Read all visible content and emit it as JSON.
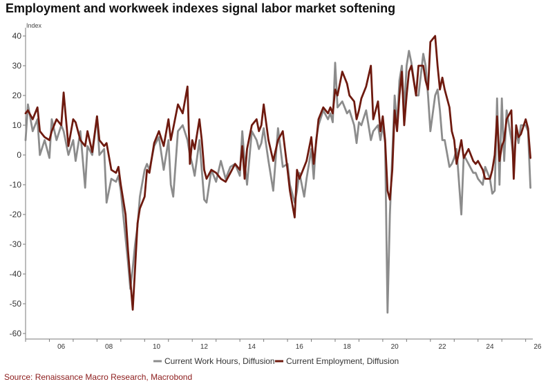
{
  "title": "Employment and workweek indexes signal labor market softening",
  "source": "Source: Renaissance Macro Research, Macrobond",
  "colors": {
    "work_hours": "#8c8c8c",
    "employment": "#6e1a0f"
  },
  "chart_data": {
    "type": "line",
    "title": "Employment and workweek indexes signal labor market softening",
    "ylabel": "Index",
    "xlabel": "",
    "ylim": [
      -60,
      40
    ],
    "xlim": [
      2005.0,
      2026.3
    ],
    "y_ticks": [
      40,
      30,
      20,
      10,
      0,
      -10,
      -20,
      -30,
      -40,
      -50,
      -60
    ],
    "x_tick_labels": [
      "06",
      "08",
      "10",
      "12",
      "14",
      "16",
      "18",
      "20",
      "22",
      "24",
      "26"
    ],
    "grid": false,
    "legend_position": "bottom",
    "series": [
      {
        "name": "Current Work Hours, Diffusion",
        "color": "#8c8c8c",
        "points": [
          [
            2005.0,
            5
          ],
          [
            2005.1,
            17
          ],
          [
            2005.3,
            8
          ],
          [
            2005.5,
            12
          ],
          [
            2005.6,
            0
          ],
          [
            2005.8,
            5
          ],
          [
            2006.0,
            -1
          ],
          [
            2006.1,
            12
          ],
          [
            2006.3,
            5
          ],
          [
            2006.5,
            10
          ],
          [
            2006.6,
            8
          ],
          [
            2006.8,
            0
          ],
          [
            2007.0,
            5
          ],
          [
            2007.1,
            -2
          ],
          [
            2007.3,
            8
          ],
          [
            2007.5,
            -11
          ],
          [
            2007.6,
            3
          ],
          [
            2007.8,
            0
          ],
          [
            2008.0,
            13
          ],
          [
            2008.1,
            0
          ],
          [
            2008.3,
            2
          ],
          [
            2008.4,
            -16
          ],
          [
            2008.6,
            -8
          ],
          [
            2008.8,
            -9
          ],
          [
            2008.9,
            -7
          ],
          [
            2009.0,
            -12
          ],
          [
            2009.2,
            -28
          ],
          [
            2009.3,
            -36
          ],
          [
            2009.4,
            -45
          ],
          [
            2009.5,
            -38
          ],
          [
            2009.6,
            -30
          ],
          [
            2009.7,
            -24
          ],
          [
            2009.8,
            -14
          ],
          [
            2010.0,
            -5
          ],
          [
            2010.1,
            -3
          ],
          [
            2010.2,
            -5
          ],
          [
            2010.4,
            3
          ],
          [
            2010.6,
            6
          ],
          [
            2010.8,
            -5
          ],
          [
            2011.0,
            5
          ],
          [
            2011.1,
            -10
          ],
          [
            2011.2,
            -14
          ],
          [
            2011.4,
            8
          ],
          [
            2011.6,
            10
          ],
          [
            2011.8,
            5
          ],
          [
            2011.9,
            0
          ],
          [
            2012.0,
            -3
          ],
          [
            2012.1,
            -7
          ],
          [
            2012.3,
            5
          ],
          [
            2012.4,
            -5
          ],
          [
            2012.5,
            -15
          ],
          [
            2012.6,
            -16
          ],
          [
            2012.8,
            -5
          ],
          [
            2013.0,
            -9
          ],
          [
            2013.2,
            -2
          ],
          [
            2013.4,
            -8
          ],
          [
            2013.6,
            -4
          ],
          [
            2013.8,
            -3
          ],
          [
            2014.0,
            -7
          ],
          [
            2014.1,
            8
          ],
          [
            2014.2,
            -2
          ],
          [
            2014.3,
            -10
          ],
          [
            2014.5,
            8
          ],
          [
            2014.7,
            5
          ],
          [
            2014.8,
            2
          ],
          [
            2014.9,
            4
          ],
          [
            2015.0,
            9
          ],
          [
            2015.2,
            -2
          ],
          [
            2015.4,
            -12
          ],
          [
            2015.6,
            9
          ],
          [
            2015.8,
            -4
          ],
          [
            2016.0,
            -3
          ],
          [
            2016.1,
            -10
          ],
          [
            2016.3,
            -16
          ],
          [
            2016.4,
            -12
          ],
          [
            2016.5,
            -6
          ],
          [
            2016.7,
            -14
          ],
          [
            2016.8,
            -8
          ],
          [
            2017.0,
            2
          ],
          [
            2017.1,
            -8
          ],
          [
            2017.2,
            5
          ],
          [
            2017.3,
            10
          ],
          [
            2017.5,
            15
          ],
          [
            2017.7,
            12
          ],
          [
            2017.8,
            14
          ],
          [
            2017.9,
            11
          ],
          [
            2018.0,
            31
          ],
          [
            2018.1,
            16
          ],
          [
            2018.3,
            18
          ],
          [
            2018.5,
            14
          ],
          [
            2018.6,
            15
          ],
          [
            2018.8,
            10
          ],
          [
            2018.9,
            4
          ],
          [
            2019.0,
            11
          ],
          [
            2019.1,
            10
          ],
          [
            2019.3,
            15
          ],
          [
            2019.5,
            5
          ],
          [
            2019.6,
            8
          ],
          [
            2019.8,
            10
          ],
          [
            2019.9,
            5
          ],
          [
            2020.0,
            10
          ],
          [
            2020.1,
            4
          ],
          [
            2020.2,
            -53
          ],
          [
            2020.3,
            -20
          ],
          [
            2020.4,
            0
          ],
          [
            2020.5,
            20
          ],
          [
            2020.6,
            10
          ],
          [
            2020.7,
            25
          ],
          [
            2020.8,
            30
          ],
          [
            2020.9,
            15
          ],
          [
            2021.0,
            30
          ],
          [
            2021.1,
            35
          ],
          [
            2021.2,
            31
          ],
          [
            2021.4,
            20
          ],
          [
            2021.5,
            20
          ],
          [
            2021.7,
            34
          ],
          [
            2021.8,
            30
          ],
          [
            2021.9,
            20
          ],
          [
            2022.0,
            8
          ],
          [
            2022.2,
            20
          ],
          [
            2022.3,
            22
          ],
          [
            2022.4,
            15
          ],
          [
            2022.5,
            5
          ],
          [
            2022.6,
            5
          ],
          [
            2022.8,
            -4
          ],
          [
            2022.9,
            -3
          ],
          [
            2023.0,
            -1
          ],
          [
            2023.1,
            2
          ],
          [
            2023.3,
            -20
          ],
          [
            2023.4,
            0
          ],
          [
            2023.6,
            -3
          ],
          [
            2023.8,
            -6
          ],
          [
            2023.9,
            -6
          ],
          [
            2024.0,
            -8
          ],
          [
            2024.2,
            -10
          ],
          [
            2024.3,
            -4
          ],
          [
            2024.5,
            -8
          ],
          [
            2024.6,
            -13
          ],
          [
            2024.7,
            -12
          ],
          [
            2024.8,
            19
          ],
          [
            2024.9,
            -10
          ],
          [
            2025.0,
            19
          ],
          [
            2025.1,
            -2
          ],
          [
            2025.2,
            15
          ],
          [
            2025.4,
            5
          ],
          [
            2025.5,
            -2
          ],
          [
            2025.6,
            8
          ],
          [
            2025.7,
            4
          ],
          [
            2025.8,
            10
          ],
          [
            2026.0,
            10
          ],
          [
            2026.1,
            8
          ],
          [
            2026.2,
            -11
          ]
        ]
      },
      {
        "name": "Current Employment, Diffusion",
        "color": "#6e1a0f",
        "points": [
          [
            2005.0,
            14
          ],
          [
            2005.1,
            15
          ],
          [
            2005.3,
            12
          ],
          [
            2005.5,
            16
          ],
          [
            2005.6,
            8
          ],
          [
            2005.8,
            6
          ],
          [
            2006.0,
            5
          ],
          [
            2006.1,
            8
          ],
          [
            2006.3,
            12
          ],
          [
            2006.5,
            10
          ],
          [
            2006.6,
            21
          ],
          [
            2006.8,
            3
          ],
          [
            2007.0,
            12
          ],
          [
            2007.1,
            11
          ],
          [
            2007.3,
            5
          ],
          [
            2007.5,
            3
          ],
          [
            2007.6,
            8
          ],
          [
            2007.8,
            1
          ],
          [
            2008.0,
            13
          ],
          [
            2008.1,
            5
          ],
          [
            2008.3,
            3
          ],
          [
            2008.4,
            4
          ],
          [
            2008.6,
            -5
          ],
          [
            2008.8,
            -6
          ],
          [
            2008.9,
            -4
          ],
          [
            2009.0,
            -10
          ],
          [
            2009.2,
            -20
          ],
          [
            2009.3,
            -32
          ],
          [
            2009.4,
            -42
          ],
          [
            2009.5,
            -52
          ],
          [
            2009.6,
            -38
          ],
          [
            2009.7,
            -23
          ],
          [
            2009.8,
            -18
          ],
          [
            2010.0,
            -14
          ],
          [
            2010.1,
            -5
          ],
          [
            2010.2,
            -6
          ],
          [
            2010.4,
            4
          ],
          [
            2010.6,
            8
          ],
          [
            2010.8,
            3
          ],
          [
            2011.0,
            12
          ],
          [
            2011.1,
            5
          ],
          [
            2011.2,
            9
          ],
          [
            2011.4,
            17
          ],
          [
            2011.6,
            14
          ],
          [
            2011.8,
            23
          ],
          [
            2011.9,
            -3
          ],
          [
            2012.0,
            5
          ],
          [
            2012.1,
            2
          ],
          [
            2012.3,
            12
          ],
          [
            2012.4,
            5
          ],
          [
            2012.5,
            -5
          ],
          [
            2012.6,
            -8
          ],
          [
            2012.8,
            -5
          ],
          [
            2013.0,
            -6
          ],
          [
            2013.2,
            -8
          ],
          [
            2013.4,
            -9
          ],
          [
            2013.6,
            -6
          ],
          [
            2013.8,
            -3
          ],
          [
            2014.0,
            -5
          ],
          [
            2014.1,
            3
          ],
          [
            2014.2,
            -8
          ],
          [
            2014.3,
            2
          ],
          [
            2014.5,
            10
          ],
          [
            2014.7,
            12
          ],
          [
            2014.8,
            8
          ],
          [
            2014.9,
            10
          ],
          [
            2015.0,
            17
          ],
          [
            2015.2,
            5
          ],
          [
            2015.4,
            -2
          ],
          [
            2015.6,
            5
          ],
          [
            2015.8,
            8
          ],
          [
            2016.0,
            -5
          ],
          [
            2016.1,
            -12
          ],
          [
            2016.3,
            -21
          ],
          [
            2016.4,
            -5
          ],
          [
            2016.5,
            -8
          ],
          [
            2016.7,
            -4
          ],
          [
            2016.8,
            -2
          ],
          [
            2017.0,
            6
          ],
          [
            2017.1,
            -3
          ],
          [
            2017.2,
            4
          ],
          [
            2017.3,
            12
          ],
          [
            2017.5,
            16
          ],
          [
            2017.7,
            14
          ],
          [
            2017.8,
            16
          ],
          [
            2017.9,
            14
          ],
          [
            2018.0,
            22
          ],
          [
            2018.1,
            20
          ],
          [
            2018.3,
            28
          ],
          [
            2018.5,
            24
          ],
          [
            2018.6,
            20
          ],
          [
            2018.8,
            18
          ],
          [
            2018.9,
            12
          ],
          [
            2019.0,
            15
          ],
          [
            2019.1,
            19
          ],
          [
            2019.3,
            23
          ],
          [
            2019.5,
            30
          ],
          [
            2019.6,
            12
          ],
          [
            2019.8,
            18
          ],
          [
            2019.9,
            8
          ],
          [
            2020.0,
            13
          ],
          [
            2020.1,
            5
          ],
          [
            2020.2,
            -12
          ],
          [
            2020.3,
            -15
          ],
          [
            2020.4,
            -5
          ],
          [
            2020.5,
            15
          ],
          [
            2020.6,
            8
          ],
          [
            2020.7,
            20
          ],
          [
            2020.8,
            28
          ],
          [
            2020.9,
            10
          ],
          [
            2021.0,
            20
          ],
          [
            2021.1,
            28
          ],
          [
            2021.2,
            30
          ],
          [
            2021.4,
            20
          ],
          [
            2021.5,
            30
          ],
          [
            2021.7,
            30
          ],
          [
            2021.8,
            25
          ],
          [
            2021.9,
            22
          ],
          [
            2022.0,
            38
          ],
          [
            2022.2,
            40
          ],
          [
            2022.3,
            30
          ],
          [
            2022.4,
            22
          ],
          [
            2022.5,
            26
          ],
          [
            2022.6,
            22
          ],
          [
            2022.8,
            16
          ],
          [
            2022.9,
            8
          ],
          [
            2023.0,
            5
          ],
          [
            2023.1,
            -3
          ],
          [
            2023.3,
            5
          ],
          [
            2023.4,
            -1
          ],
          [
            2023.6,
            2
          ],
          [
            2023.8,
            -2
          ],
          [
            2023.9,
            -3
          ],
          [
            2024.0,
            -2
          ],
          [
            2024.2,
            -5
          ],
          [
            2024.3,
            -8
          ],
          [
            2024.5,
            -8
          ],
          [
            2024.6,
            -5
          ],
          [
            2024.7,
            0
          ],
          [
            2024.8,
            13
          ],
          [
            2024.9,
            -2
          ],
          [
            2025.0,
            3
          ],
          [
            2025.1,
            5
          ],
          [
            2025.2,
            12
          ],
          [
            2025.4,
            15
          ],
          [
            2025.5,
            -8
          ],
          [
            2025.6,
            10
          ],
          [
            2025.7,
            6
          ],
          [
            2025.8,
            7
          ],
          [
            2026.0,
            12
          ],
          [
            2026.1,
            9
          ],
          [
            2026.2,
            -1
          ]
        ]
      }
    ]
  }
}
